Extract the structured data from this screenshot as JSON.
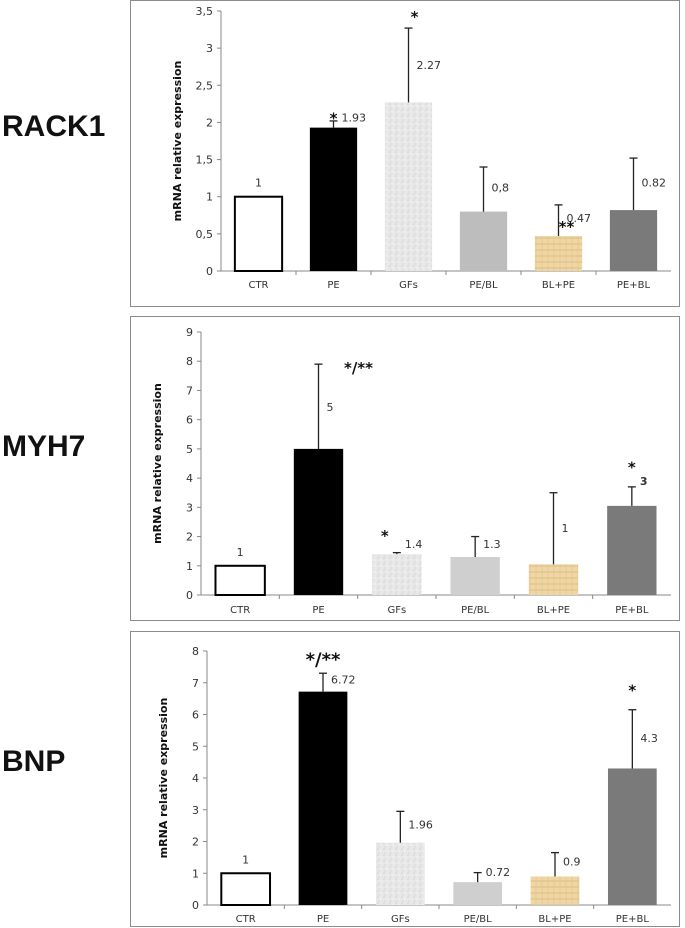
{
  "chart_data": [
    {
      "type": "bar",
      "gene": "RACK1",
      "title": "",
      "xlabel": "",
      "ylabel": "mRNA relative expression",
      "ylim": [
        0,
        3.5
      ],
      "yticks": [
        0,
        0.5,
        1,
        1.5,
        2,
        2.5,
        3,
        3.5
      ],
      "ytick_labels": [
        "0",
        "0,5",
        "1",
        "1,5",
        "2",
        "2,5",
        "3",
        "3,5"
      ],
      "grid": false,
      "categories": [
        "CTR",
        "PE",
        "GFs",
        "PE/BL",
        "BL+PE",
        "PE+BL"
      ],
      "values": [
        1,
        1.93,
        2.27,
        0.8,
        0.47,
        0.82
      ],
      "error_upper": [
        null,
        2.02,
        3.27,
        1.4,
        0.89,
        1.52
      ],
      "value_labels": [
        "1",
        "1.93",
        "2.27",
        "0,8",
        "0.47",
        "0.82"
      ],
      "significance": [
        "",
        "*",
        "*",
        "",
        "**",
        ""
      ]
    },
    {
      "type": "bar",
      "gene": "MYH7",
      "title": "",
      "xlabel": "",
      "ylabel": "mRNA relative expression",
      "ylim": [
        0,
        9
      ],
      "yticks": [
        0,
        1,
        2,
        3,
        4,
        5,
        6,
        7,
        8,
        9
      ],
      "ytick_labels": [
        "0",
        "1",
        "2",
        "3",
        "4",
        "5",
        "6",
        "7",
        "8",
        "9"
      ],
      "grid": false,
      "categories": [
        "CTR",
        "PE",
        "GFs",
        "PE/BL",
        "BL+PE",
        "PE+BL"
      ],
      "values": [
        1,
        5,
        1.4,
        1.3,
        1.05,
        3.05
      ],
      "error_upper": [
        null,
        7.9,
        1.45,
        2.0,
        3.5,
        3.7
      ],
      "value_labels": [
        "1",
        "5",
        "1.4",
        "1.3",
        "1",
        "3"
      ],
      "significance": [
        "",
        "*/**",
        "*",
        "",
        "",
        "*"
      ]
    },
    {
      "type": "bar",
      "gene": "BNP",
      "title": "",
      "xlabel": "",
      "ylabel": "mRNA relative expression",
      "ylim": [
        0,
        8
      ],
      "yticks": [
        0,
        1,
        2,
        3,
        4,
        5,
        6,
        7,
        8
      ],
      "ytick_labels": [
        "0",
        "1",
        "2",
        "3",
        "4",
        "5",
        "6",
        "7",
        "8"
      ],
      "grid": false,
      "categories": [
        "CTR",
        "PE",
        "GFs",
        "PE/BL",
        "BL+PE",
        "PE+BL"
      ],
      "values": [
        1,
        6.72,
        1.96,
        0.72,
        0.9,
        4.3
      ],
      "error_upper": [
        null,
        7.3,
        2.95,
        1.02,
        1.65,
        6.15
      ],
      "value_labels": [
        "1",
        "6.72",
        "1.96",
        "0.72",
        "0.9",
        "4.3"
      ],
      "significance": [
        "*/**",
        "",
        "",
        "",
        "",
        "*"
      ],
      "significance_note": "*/** above PE bar, * above PE+BL bar"
    }
  ],
  "bar_styles": {
    "CTR": {
      "fill": "#ffffff",
      "stroke": "#000000"
    },
    "PE": {
      "fill": "#000000"
    },
    "GFs": {
      "fill": "#e6e6e6",
      "pattern": "speckled"
    },
    "PE/BL_RACK1": {
      "fill": "#bdbdbd"
    },
    "PE/BL": {
      "fill": "#c8c8c8"
    },
    "BL+PE": {
      "fill": "#ecd19a",
      "pattern": "woven"
    },
    "PE+BL": {
      "fill": "#7a7a7a"
    }
  }
}
